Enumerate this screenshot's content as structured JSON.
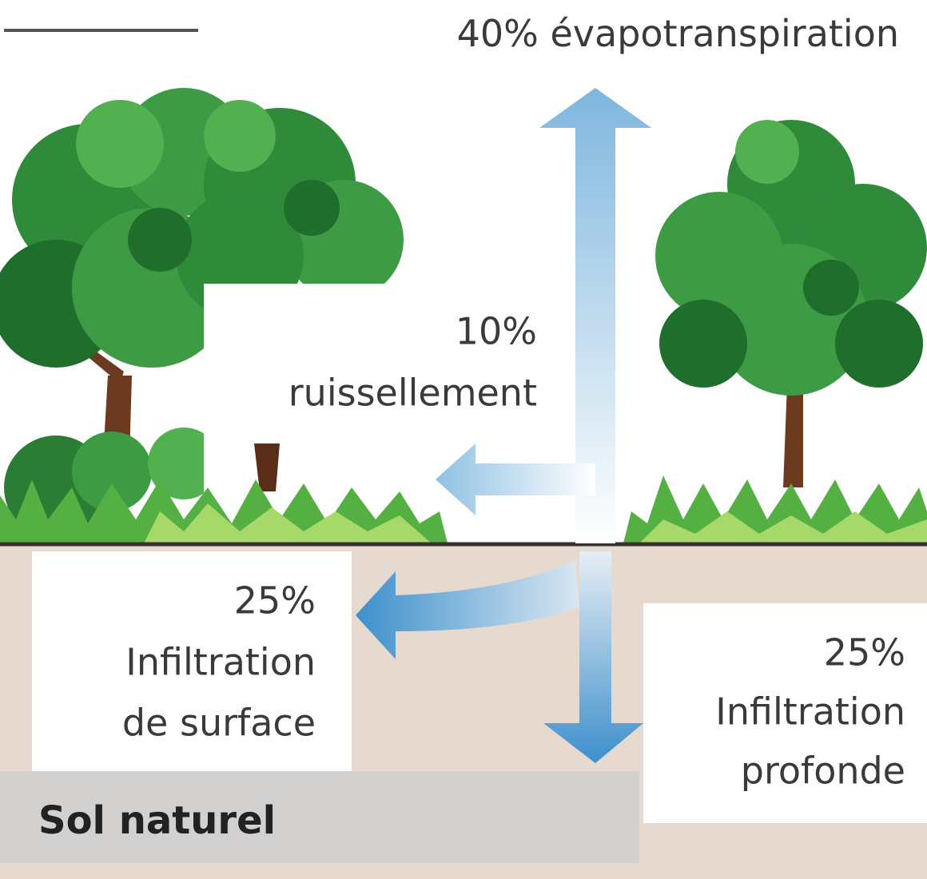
{
  "flows": [
    {
      "percent": "40%",
      "label": "évapotranspiration"
    },
    {
      "percent": "10%",
      "label": "ruissellement"
    },
    {
      "percent": "25%",
      "label_lines": [
        "Infiltration",
        "de surface"
      ]
    },
    {
      "percent": "25%",
      "label_lines": [
        "Infiltration",
        "profonde"
      ]
    }
  ],
  "ground": {
    "label": "Sol naturel"
  }
}
